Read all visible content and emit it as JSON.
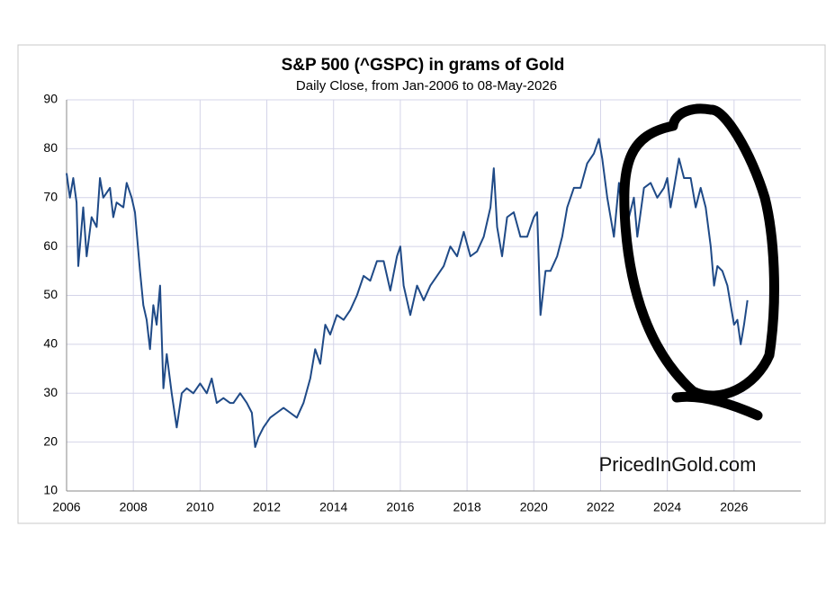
{
  "chart_data": {
    "type": "line",
    "title": "S&P 500 (^GSPC) in grams of Gold",
    "subtitle": "Daily Close, from Jan-2006 to 08-May-2026",
    "watermark": "PricedInGold.com",
    "xlim": [
      2006,
      2028
    ],
    "xticks": [
      2006,
      2008,
      2010,
      2012,
      2014,
      2016,
      2018,
      2020,
      2022,
      2024,
      2026
    ],
    "ylim": [
      10,
      90
    ],
    "yticks": [
      10,
      20,
      30,
      40,
      50,
      60,
      70,
      80,
      90
    ],
    "grid": true,
    "series": [
      {
        "color": "#1f4a87",
        "x": [
          2006.0,
          2006.1,
          2006.2,
          2006.3,
          2006.35,
          2006.5,
          2006.6,
          2006.75,
          2006.9,
          2007.0,
          2007.1,
          2007.3,
          2007.4,
          2007.5,
          2007.7,
          2007.8,
          2007.95,
          2008.05,
          2008.2,
          2008.3,
          2008.4,
          2008.5,
          2008.6,
          2008.7,
          2008.8,
          2008.9,
          2009.0,
          2009.15,
          2009.3,
          2009.45,
          2009.6,
          2009.8,
          2010.0,
          2010.2,
          2010.35,
          2010.5,
          2010.7,
          2010.9,
          2011.0,
          2011.2,
          2011.4,
          2011.55,
          2011.65,
          2011.75,
          2011.9,
          2012.1,
          2012.3,
          2012.5,
          2012.7,
          2012.9,
          2013.1,
          2013.3,
          2013.45,
          2013.6,
          2013.75,
          2013.9,
          2014.1,
          2014.3,
          2014.5,
          2014.7,
          2014.9,
          2015.1,
          2015.3,
          2015.5,
          2015.7,
          2015.9,
          2016.0,
          2016.1,
          2016.3,
          2016.5,
          2016.7,
          2016.9,
          2017.1,
          2017.3,
          2017.5,
          2017.7,
          2017.9,
          2018.1,
          2018.3,
          2018.5,
          2018.7,
          2018.8,
          2018.9,
          2019.05,
          2019.2,
          2019.4,
          2019.6,
          2019.8,
          2020.0,
          2020.1,
          2020.2,
          2020.35,
          2020.5,
          2020.7,
          2020.85,
          2021.0,
          2021.2,
          2021.4,
          2021.6,
          2021.8,
          2021.95,
          2022.05,
          2022.2,
          2022.4,
          2022.55,
          2022.7,
          2022.85,
          2023.0,
          2023.1,
          2023.3,
          2023.5,
          2023.7,
          2023.9,
          2024.0,
          2024.1,
          2024.2,
          2024.35,
          2024.5,
          2024.7,
          2024.85,
          2025.0,
          2025.15,
          2025.3,
          2025.4,
          2025.5,
          2025.65,
          2025.8,
          2025.9,
          2026.0,
          2026.1,
          2026.2,
          2026.3,
          2026.4
        ],
        "values": [
          75,
          70,
          74,
          69,
          56,
          68,
          58,
          66,
          64,
          74,
          70,
          72,
          66,
          69,
          68,
          73,
          70,
          67,
          55,
          48,
          45,
          39,
          48,
          44,
          52,
          31,
          38,
          30,
          23,
          30,
          31,
          30,
          32,
          30,
          33,
          28,
          29,
          28,
          28,
          30,
          28,
          26,
          19,
          21,
          23,
          25,
          26,
          27,
          26,
          25,
          28,
          33,
          39,
          36,
          44,
          42,
          46,
          45,
          47,
          50,
          54,
          53,
          57,
          57,
          51,
          58,
          60,
          52,
          46,
          52,
          49,
          52,
          54,
          56,
          60,
          58,
          63,
          58,
          59,
          62,
          68,
          76,
          64,
          58,
          66,
          67,
          62,
          62,
          66,
          67,
          46,
          55,
          55,
          58,
          62,
          68,
          72,
          72,
          77,
          79,
          82,
          78,
          70,
          62,
          73,
          63,
          66,
          70,
          62,
          72,
          73,
          70,
          72,
          74,
          68,
          72,
          78,
          74,
          74,
          68,
          72,
          68,
          60,
          52,
          56,
          55,
          52,
          48,
          44,
          45,
          40,
          44,
          49
        ]
      }
    ]
  }
}
